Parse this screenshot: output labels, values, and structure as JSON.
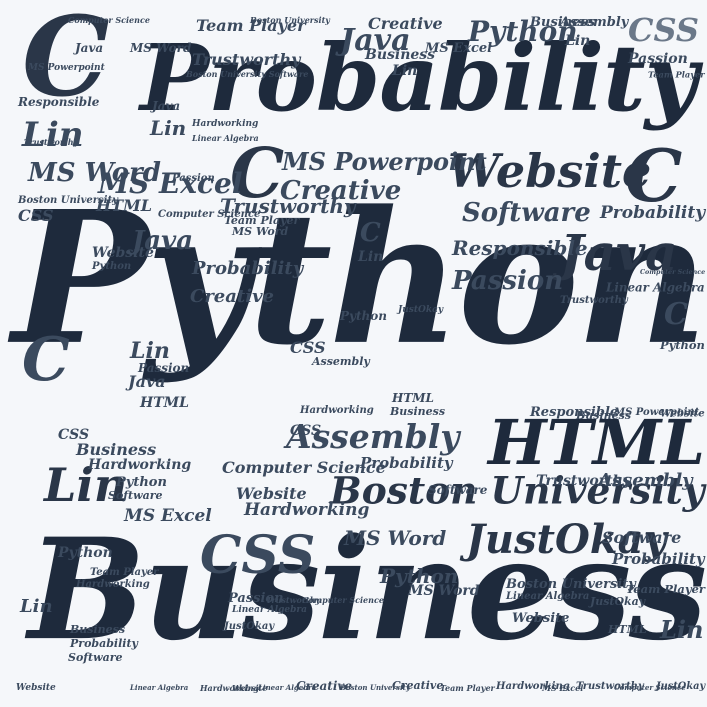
{
  "colors": {
    "background": "#f5f7fa",
    "text_dark": "#1e2a3c",
    "text_mid": "#3b4a5e",
    "text_light": "#6b7889"
  },
  "words": {
    "python": "Python",
    "business": "Business",
    "probability": "Probability",
    "boston_university": "Boston University",
    "assembly": "Assembly",
    "html": "HTML",
    "css": "CSS",
    "java": "Java",
    "website": "Website",
    "lin": "Lin",
    "c": "C",
    "ms_excel": "MS Excel",
    "ms_word": "MS Word",
    "ms_powerpoint": "MS Powerpoint",
    "justokay": "JustOkay",
    "software": "Software",
    "passion": "Passion",
    "creative": "Creative",
    "trustworthy": "Trustworthy",
    "team_player": "Team Player",
    "responsible": "Responsible",
    "hardworking": "Hardworking",
    "computer_science": "Computer Science",
    "linear_algebra": "Linear Algebra",
    "boston_university_software": "Boston University Software"
  }
}
